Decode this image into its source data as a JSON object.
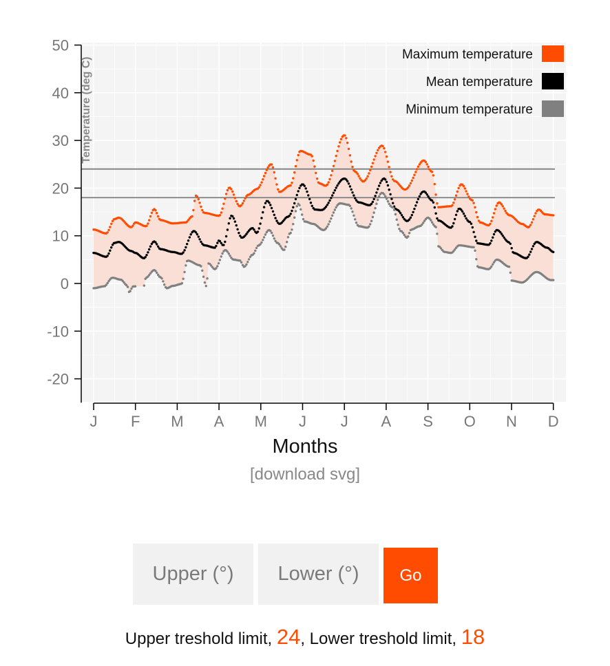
{
  "chart_data": {
    "type": "scatter",
    "title": "",
    "xlabel": "Months",
    "ylabel": "Temperature (deg C)",
    "ylim": [
      -25,
      50
    ],
    "yticks": [
      -20,
      -10,
      0,
      10,
      20,
      30,
      40,
      50
    ],
    "grid": true,
    "legend_position": "top-right",
    "categories": [
      "J",
      "F",
      "M",
      "A",
      "M",
      "J",
      "J",
      "A",
      "S",
      "O",
      "N",
      "D"
    ],
    "band_color": "#f9dfd6",
    "series": [
      {
        "name": "Maximum temperature",
        "color": "#ff4c00",
        "keypoints": [
          [
            0,
            11.3
          ],
          [
            0.3,
            10.5
          ],
          [
            0.5,
            13.5
          ],
          [
            0.6,
            13.8
          ],
          [
            0.9,
            11.8
          ],
          [
            1.0,
            12.8
          ],
          [
            1.25,
            12.0
          ],
          [
            1.45,
            15.6
          ],
          [
            1.6,
            13.3
          ],
          [
            1.9,
            12.6
          ],
          [
            2.2,
            12.8
          ],
          [
            2.35,
            14.0
          ],
          [
            2.45,
            18.4
          ],
          [
            2.65,
            14.8
          ],
          [
            3.0,
            14.2
          ],
          [
            3.25,
            20.1
          ],
          [
            3.5,
            16.2
          ],
          [
            3.7,
            18.6
          ],
          [
            3.9,
            19.8
          ],
          [
            4.25,
            25.0
          ],
          [
            4.45,
            19.2
          ],
          [
            4.7,
            20.5
          ],
          [
            4.95,
            27.8
          ],
          [
            5.2,
            27.0
          ],
          [
            5.4,
            21.0
          ],
          [
            5.55,
            20.5
          ],
          [
            6.0,
            31.1
          ],
          [
            6.25,
            23.5
          ],
          [
            6.45,
            21.4
          ],
          [
            6.9,
            28.9
          ],
          [
            7.2,
            21.5
          ],
          [
            7.45,
            19.7
          ],
          [
            7.9,
            25.8
          ],
          [
            8.1,
            23.4
          ],
          [
            8.25,
            16.0
          ],
          [
            8.55,
            16.2
          ],
          [
            8.8,
            20.8
          ],
          [
            9.05,
            17.5
          ],
          [
            9.25,
            12.8
          ],
          [
            9.45,
            12.2
          ],
          [
            9.7,
            17.0
          ],
          [
            9.95,
            14.3
          ],
          [
            10.25,
            12.5
          ],
          [
            10.4,
            11.8
          ],
          [
            10.65,
            15.5
          ],
          [
            10.8,
            14.5
          ],
          [
            11.0,
            14.3
          ]
        ]
      },
      {
        "name": "Mean temperature",
        "color": "#000000",
        "keypoints": [
          [
            0,
            6.4
          ],
          [
            0.3,
            5.6
          ],
          [
            0.5,
            8.5
          ],
          [
            0.6,
            8.7
          ],
          [
            0.9,
            6.8
          ],
          [
            1.0,
            6.4
          ],
          [
            1.2,
            5.3
          ],
          [
            1.45,
            8.8
          ],
          [
            1.6,
            7.2
          ],
          [
            1.9,
            6.6
          ],
          [
            2.1,
            6.2
          ],
          [
            2.4,
            11.0
          ],
          [
            2.65,
            8.0
          ],
          [
            2.9,
            7.5
          ],
          [
            3.0,
            9.0
          ],
          [
            3.1,
            8.0
          ],
          [
            3.3,
            14.2
          ],
          [
            3.55,
            9.6
          ],
          [
            3.8,
            11.6
          ],
          [
            3.9,
            10.6
          ],
          [
            4.15,
            17.3
          ],
          [
            4.45,
            12.5
          ],
          [
            4.65,
            14.0
          ],
          [
            5.0,
            20.8
          ],
          [
            5.3,
            15.5
          ],
          [
            5.45,
            15.4
          ],
          [
            6.0,
            22.0
          ],
          [
            6.35,
            17.0
          ],
          [
            6.6,
            16.4
          ],
          [
            6.95,
            22.0
          ],
          [
            7.25,
            15.5
          ],
          [
            7.5,
            13.1
          ],
          [
            7.9,
            19.3
          ],
          [
            8.1,
            17.4
          ],
          [
            8.25,
            13.2
          ],
          [
            8.55,
            11.7
          ],
          [
            8.75,
            15.7
          ],
          [
            9.0,
            12.9
          ],
          [
            9.2,
            8.4
          ],
          [
            9.45,
            8.1
          ],
          [
            9.65,
            11.2
          ],
          [
            9.95,
            8.6
          ],
          [
            10.05,
            6.4
          ],
          [
            10.35,
            5.3
          ],
          [
            10.6,
            8.7
          ],
          [
            10.85,
            7.5
          ],
          [
            11.0,
            6.6
          ]
        ]
      },
      {
        "name": "Minimum temperature",
        "color": "#808080",
        "keypoints": [
          [
            0,
            -1.0
          ],
          [
            0.25,
            -0.6
          ],
          [
            0.45,
            1.2
          ],
          [
            0.65,
            0.8
          ],
          [
            0.8,
            -0.4
          ],
          [
            0.85,
            -1.8
          ],
          [
            0.95,
            -0.6
          ],
          [
            1.2,
            -0.6
          ],
          [
            1.25,
            1.2
          ],
          [
            1.45,
            2.8
          ],
          [
            1.6,
            1.3
          ],
          [
            1.75,
            -1.0
          ],
          [
            1.9,
            -0.5
          ],
          [
            2.1,
            -0.1
          ],
          [
            2.25,
            4.8
          ],
          [
            2.55,
            3.8
          ],
          [
            2.7,
            -0.6
          ],
          [
            2.75,
            4.2
          ],
          [
            2.9,
            3.0
          ],
          [
            3.15,
            7.0
          ],
          [
            3.35,
            5.0
          ],
          [
            3.5,
            4.8
          ],
          [
            3.6,
            3.5
          ],
          [
            3.8,
            6.0
          ],
          [
            3.95,
            8.0
          ],
          [
            4.2,
            11.2
          ],
          [
            4.4,
            8.5
          ],
          [
            4.55,
            7.0
          ],
          [
            4.7,
            10.5
          ],
          [
            4.9,
            16.7
          ],
          [
            5.05,
            13.0
          ],
          [
            5.25,
            12.5
          ],
          [
            5.5,
            11.2
          ],
          [
            5.9,
            16.8
          ],
          [
            6.1,
            16.5
          ],
          [
            6.35,
            12.0
          ],
          [
            6.55,
            11.7
          ],
          [
            6.9,
            19.0
          ],
          [
            7.15,
            16.0
          ],
          [
            7.35,
            11.0
          ],
          [
            7.5,
            9.6
          ],
          [
            7.6,
            11.3
          ],
          [
            7.8,
            12.0
          ],
          [
            8.0,
            13.8
          ],
          [
            8.2,
            11.8
          ],
          [
            8.25,
            7.8
          ],
          [
            8.4,
            6.6
          ],
          [
            8.55,
            6.4
          ],
          [
            8.75,
            8.0
          ],
          [
            9.1,
            7.6
          ],
          [
            9.2,
            3.4
          ],
          [
            9.45,
            3.0
          ],
          [
            9.65,
            5.0
          ],
          [
            9.95,
            3.5
          ],
          [
            10.0,
            0.6
          ],
          [
            10.25,
            0.2
          ],
          [
            10.6,
            2.4
          ],
          [
            10.95,
            0.7
          ]
        ],
        "gaps": [
          [
            1.0,
            1.2
          ]
        ]
      }
    ],
    "threshold_lines": [
      {
        "label": "upper",
        "value": 24
      },
      {
        "label": "lower",
        "value": 18
      }
    ]
  },
  "download_label": "[download svg]",
  "controls": {
    "upper_placeholder": "Upper (°)",
    "lower_placeholder": "Lower (°)",
    "go_label": "Go"
  },
  "status": {
    "upper_text": "Upper treshold limit, ",
    "upper_value": "24",
    "separator": ", Lower treshold limit, ",
    "lower_value": "18"
  }
}
